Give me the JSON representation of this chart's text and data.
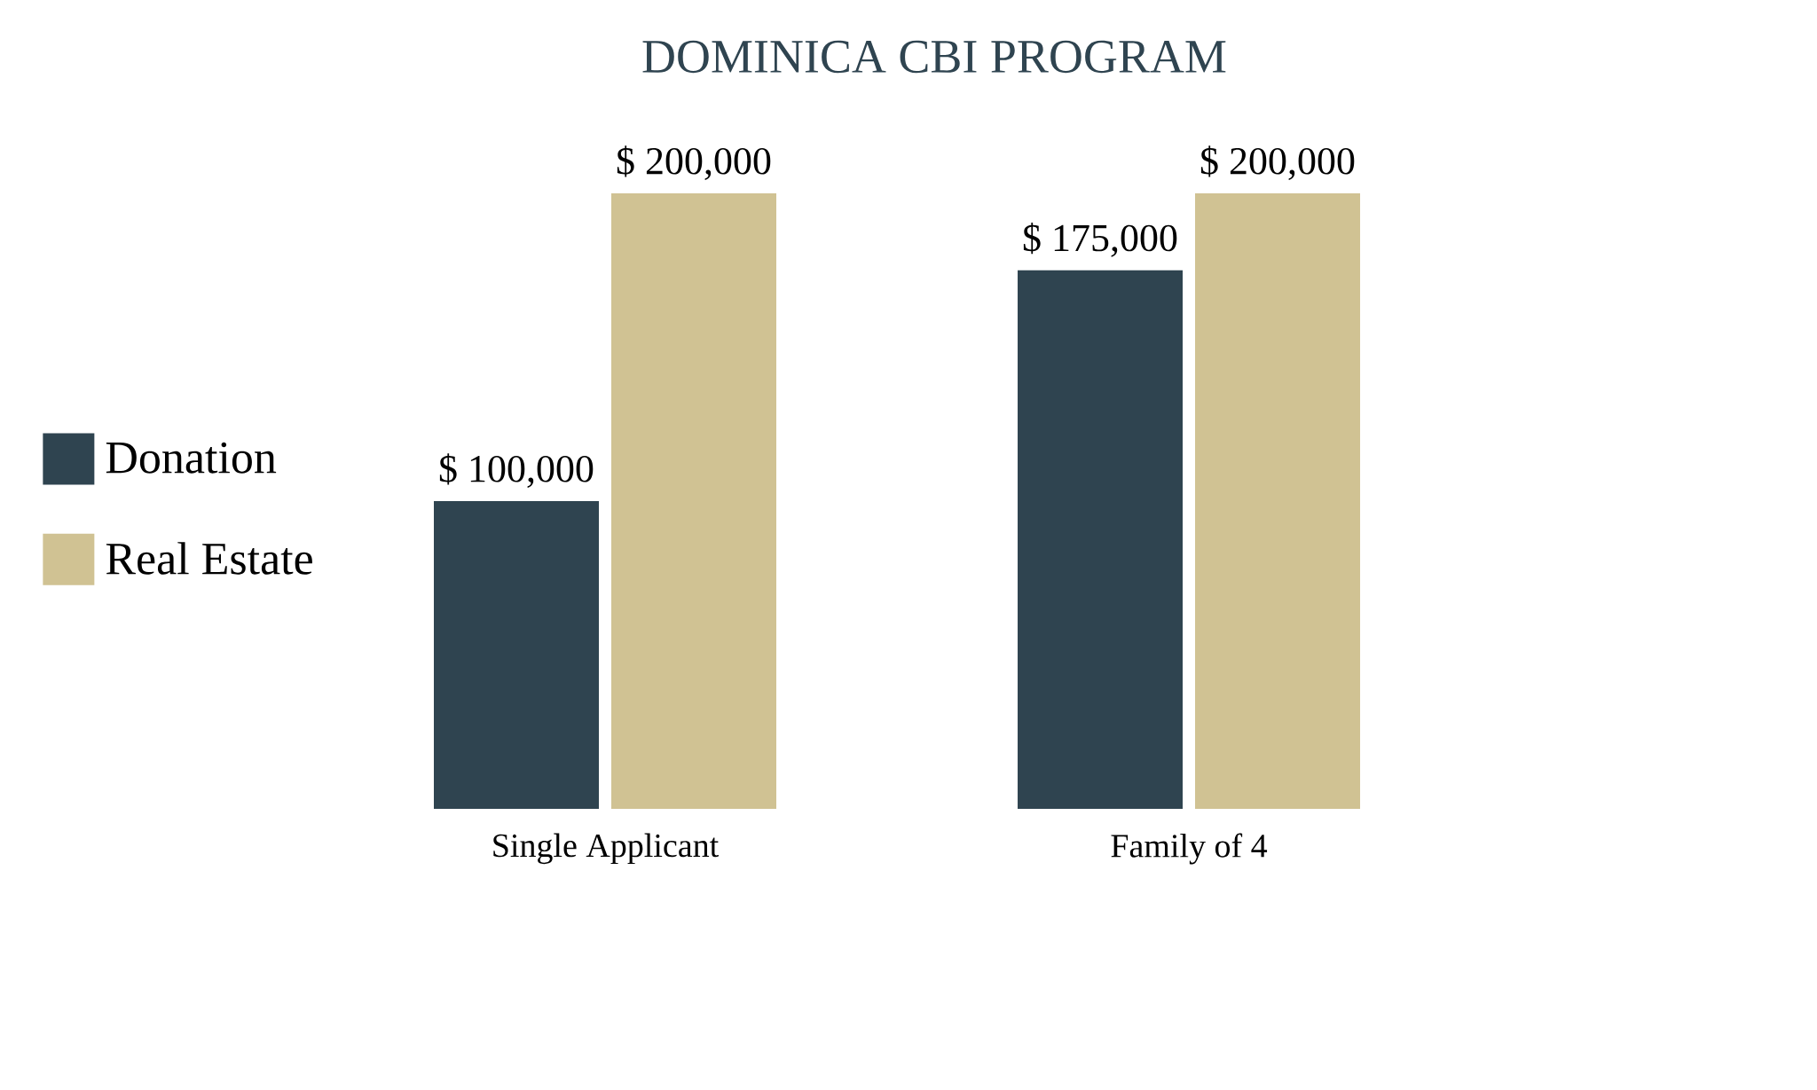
{
  "chart_data": {
    "type": "bar",
    "title": "DOMINICA CBI PROGRAM",
    "categories": [
      "Single Applicant",
      "Family of 4"
    ],
    "series": [
      {
        "name": "Donation",
        "color": "#2f4450",
        "values": [
          100000,
          175000
        ],
        "value_labels": [
          "$ 100,000",
          "$ 175,000"
        ]
      },
      {
        "name": "Real Estate",
        "color": "#d0c293",
        "values": [
          200000,
          200000
        ],
        "value_labels": [
          "$ 200,000",
          "$ 200,000"
        ]
      }
    ],
    "legend": "left",
    "tick_labels": "x"
  }
}
